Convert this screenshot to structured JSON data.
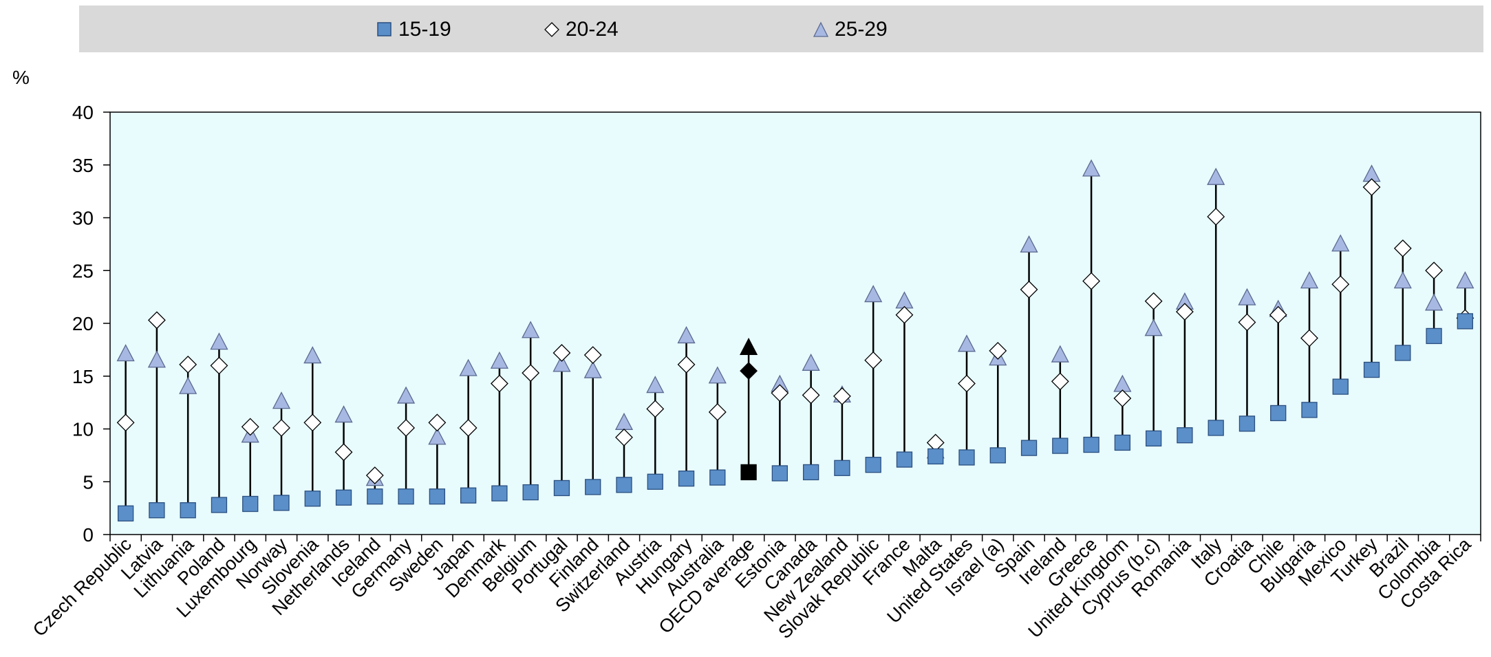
{
  "colors": {
    "plot_background": "#e8fbfd",
    "age_15_19": "#5b8fc9",
    "age_20_24": "#ffffff",
    "age_25_29": "#a7b8e2",
    "oecd_average": "#000000",
    "legend_background": "#d9d9d9"
  },
  "chart_data": {
    "type": "scatter",
    "y_unit_label": "%",
    "ylim": [
      0,
      40
    ],
    "yticks": [
      0,
      5,
      10,
      15,
      20,
      25,
      30,
      35,
      40
    ],
    "grid": false,
    "legend_position": "top",
    "categories": [
      "Czech Republic",
      "Latvia",
      "Lithuania",
      "Poland",
      "Luxembourg",
      "Norway",
      "Slovenia",
      "Netherlands",
      "Iceland",
      "Germany",
      "Sweden",
      "Japan",
      "Denmark",
      "Belgium",
      "Portugal",
      "Finland",
      "Switzerland",
      "Austria",
      "Hungary",
      "Australia",
      "OECD average",
      "Estonia",
      "Canada",
      "New Zealand",
      "Slovak Republic",
      "France",
      "Malta",
      "United States",
      "Israel (a)",
      "Spain",
      "Ireland",
      "Greece",
      "United Kingdom",
      "Cyprus (b,c)",
      "Romania",
      "Italy",
      "Croatia",
      "Chile",
      "Bulgaria",
      "Mexico",
      "Turkey",
      "Brazil",
      "Colombia",
      "Costa Rica"
    ],
    "highlight_category": "OECD average",
    "series": [
      {
        "name": "15-19",
        "marker": "square",
        "values": [
          2.0,
          2.3,
          2.3,
          2.8,
          2.9,
          3.0,
          3.4,
          3.5,
          3.6,
          3.6,
          3.6,
          3.7,
          3.9,
          4.0,
          4.4,
          4.5,
          4.7,
          5.0,
          5.3,
          5.4,
          5.9,
          5.8,
          5.9,
          6.3,
          6.6,
          7.1,
          7.4,
          7.3,
          7.5,
          8.2,
          8.4,
          8.5,
          8.7,
          9.1,
          9.4,
          10.1,
          10.5,
          11.5,
          11.8,
          14.0,
          15.6,
          17.2,
          18.8,
          20.2
        ]
      },
      {
        "name": "20-24",
        "marker": "diamond",
        "values": [
          10.6,
          20.3,
          16.1,
          16.0,
          10.2,
          10.1,
          10.6,
          7.8,
          5.6,
          10.1,
          10.6,
          10.1,
          14.3,
          15.3,
          17.2,
          17.0,
          9.2,
          11.9,
          16.1,
          11.6,
          15.5,
          13.4,
          13.2,
          13.1,
          16.5,
          20.8,
          8.7,
          14.3,
          17.4,
          23.2,
          14.5,
          24.0,
          12.9,
          22.1,
          21.1,
          30.1,
          20.1,
          20.8,
          18.6,
          23.7,
          32.9,
          27.1,
          25.0,
          20.5
        ]
      },
      {
        "name": "25-29",
        "marker": "triangle",
        "values": [
          17.1,
          16.5,
          14.0,
          18.2,
          9.4,
          12.6,
          16.9,
          11.3,
          5.3,
          13.1,
          9.2,
          15.7,
          16.4,
          19.3,
          16.1,
          15.5,
          10.6,
          14.1,
          18.8,
          15.0,
          17.7,
          14.2,
          16.2,
          13.2,
          22.7,
          22.1,
          7.9,
          18.0,
          16.7,
          27.4,
          17.0,
          34.6,
          14.2,
          19.5,
          22.0,
          33.8,
          22.4,
          21.3,
          24.0,
          27.5,
          34.1,
          24.0,
          21.9,
          24.0
        ]
      }
    ]
  }
}
